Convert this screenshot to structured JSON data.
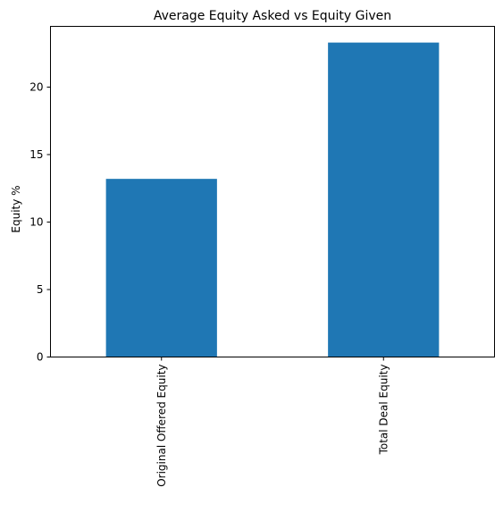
{
  "chart_data": {
    "type": "bar",
    "title": "Average Equity Asked vs Equity Given",
    "xlabel": "",
    "ylabel": "Equity %",
    "categories": [
      "Original Offered Equity",
      "Total Deal Equity"
    ],
    "values": [
      13.2,
      23.3
    ],
    "ylim": [
      0,
      24.5
    ],
    "yticks": [
      0,
      5,
      10,
      15,
      20
    ],
    "ytick_labels": [
      "0",
      "5",
      "10",
      "15",
      "20"
    ],
    "grid": false,
    "legend": "none",
    "bar_color": "#1f77b4"
  }
}
